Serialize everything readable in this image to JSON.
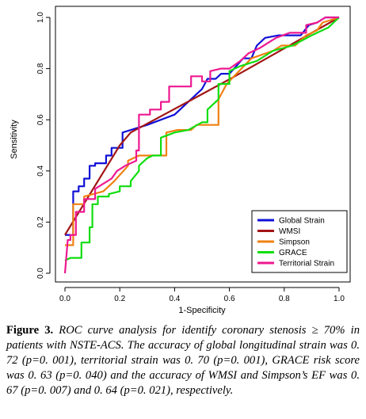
{
  "chart_data": {
    "type": "line",
    "xlabel": "1-Specificity",
    "ylabel": "Sensitivity",
    "xlim": [
      0,
      1
    ],
    "ylim": [
      0,
      1
    ],
    "xticks": [
      "0.0",
      "0.2",
      "0.4",
      "0.6",
      "0.8",
      "1.0"
    ],
    "yticks": [
      "0.0",
      "0.2",
      "0.4",
      "0.6",
      "0.8",
      "1.0"
    ],
    "legend_position": "bottom-right",
    "grid": false,
    "series": [
      {
        "name": "Global Strain",
        "color": "#1010d8",
        "points": [
          [
            0,
            0.15
          ],
          [
            0.03,
            0.15
          ],
          [
            0.03,
            0.32
          ],
          [
            0.05,
            0.32
          ],
          [
            0.05,
            0.34
          ],
          [
            0.07,
            0.34
          ],
          [
            0.07,
            0.37
          ],
          [
            0.09,
            0.37
          ],
          [
            0.09,
            0.42
          ],
          [
            0.11,
            0.42
          ],
          [
            0.11,
            0.43
          ],
          [
            0.15,
            0.43
          ],
          [
            0.15,
            0.46
          ],
          [
            0.17,
            0.46
          ],
          [
            0.17,
            0.49
          ],
          [
            0.21,
            0.49
          ],
          [
            0.21,
            0.55
          ],
          [
            0.3,
            0.58
          ],
          [
            0.4,
            0.62
          ],
          [
            0.5,
            0.72
          ],
          [
            0.52,
            0.76
          ],
          [
            0.55,
            0.76
          ],
          [
            0.57,
            0.78
          ],
          [
            0.6,
            0.78
          ],
          [
            0.65,
            0.84
          ],
          [
            0.68,
            0.84
          ],
          [
            0.7,
            0.89
          ],
          [
            0.73,
            0.92
          ],
          [
            0.78,
            0.93
          ],
          [
            0.86,
            0.93
          ],
          [
            0.89,
            0.97
          ],
          [
            0.92,
            0.98
          ],
          [
            0.95,
            1
          ],
          [
            1,
            1
          ]
        ]
      },
      {
        "name": "WMSI",
        "color": "#a21515",
        "points": [
          [
            0,
            0.15
          ],
          [
            0.2,
            0.5
          ],
          [
            0.24,
            0.55
          ],
          [
            0.5,
            0.7
          ],
          [
            0.62,
            0.77
          ],
          [
            1,
            1
          ]
        ]
      },
      {
        "name": "Simpson",
        "color": "#f08010",
        "points": [
          [
            0,
            0.11
          ],
          [
            0.03,
            0.11
          ],
          [
            0.03,
            0.27
          ],
          [
            0.07,
            0.27
          ],
          [
            0.07,
            0.3
          ],
          [
            0.14,
            0.32
          ],
          [
            0.18,
            0.36
          ],
          [
            0.23,
            0.42
          ],
          [
            0.23,
            0.44
          ],
          [
            0.27,
            0.46
          ],
          [
            0.37,
            0.46
          ],
          [
            0.37,
            0.55
          ],
          [
            0.41,
            0.56
          ],
          [
            0.46,
            0.56
          ],
          [
            0.48,
            0.58
          ],
          [
            0.56,
            0.58
          ],
          [
            0.56,
            0.68
          ],
          [
            0.59,
            0.74
          ],
          [
            0.68,
            0.84
          ],
          [
            0.76,
            0.87
          ],
          [
            0.79,
            0.89
          ],
          [
            0.84,
            0.89
          ],
          [
            0.88,
            0.93
          ],
          [
            0.92,
            0.95
          ],
          [
            0.94,
            0.98
          ],
          [
            1,
            1
          ]
        ]
      },
      {
        "name": "GRACE",
        "color": "#10dd10",
        "points": [
          [
            0,
            0.05
          ],
          [
            0.02,
            0.06
          ],
          [
            0.06,
            0.06
          ],
          [
            0.06,
            0.12
          ],
          [
            0.09,
            0.12
          ],
          [
            0.09,
            0.18
          ],
          [
            0.1,
            0.18
          ],
          [
            0.1,
            0.27
          ],
          [
            0.12,
            0.27
          ],
          [
            0.12,
            0.3
          ],
          [
            0.16,
            0.3
          ],
          [
            0.16,
            0.31
          ],
          [
            0.2,
            0.32
          ],
          [
            0.2,
            0.34
          ],
          [
            0.24,
            0.34
          ],
          [
            0.24,
            0.36
          ],
          [
            0.27,
            0.4
          ],
          [
            0.27,
            0.42
          ],
          [
            0.3,
            0.45
          ],
          [
            0.32,
            0.46
          ],
          [
            0.35,
            0.46
          ],
          [
            0.35,
            0.53
          ],
          [
            0.4,
            0.55
          ],
          [
            0.45,
            0.56
          ],
          [
            0.5,
            0.59
          ],
          [
            0.52,
            0.59
          ],
          [
            0.52,
            0.64
          ],
          [
            0.56,
            0.68
          ],
          [
            0.56,
            0.74
          ],
          [
            0.6,
            0.74
          ],
          [
            0.6,
            0.79
          ],
          [
            0.64,
            0.81
          ],
          [
            0.7,
            0.83
          ],
          [
            0.76,
            0.87
          ],
          [
            0.83,
            0.89
          ],
          [
            0.9,
            0.93
          ],
          [
            0.96,
            0.96
          ],
          [
            1,
            1
          ]
        ]
      },
      {
        "name": "Territorial Strain",
        "color": "#ee1890",
        "points": [
          [
            0,
            0
          ],
          [
            0.01,
            0.13
          ],
          [
            0.02,
            0.13
          ],
          [
            0.02,
            0.15
          ],
          [
            0.04,
            0.15
          ],
          [
            0.04,
            0.24
          ],
          [
            0.07,
            0.24
          ],
          [
            0.07,
            0.29
          ],
          [
            0.11,
            0.29
          ],
          [
            0.11,
            0.33
          ],
          [
            0.14,
            0.35
          ],
          [
            0.17,
            0.37
          ],
          [
            0.19,
            0.4
          ],
          [
            0.22,
            0.42
          ],
          [
            0.26,
            0.44
          ],
          [
            0.26,
            0.48
          ],
          [
            0.27,
            0.48
          ],
          [
            0.27,
            0.62
          ],
          [
            0.31,
            0.62
          ],
          [
            0.31,
            0.64
          ],
          [
            0.35,
            0.64
          ],
          [
            0.35,
            0.67
          ],
          [
            0.38,
            0.67
          ],
          [
            0.38,
            0.73
          ],
          [
            0.43,
            0.73
          ],
          [
            0.46,
            0.73
          ],
          [
            0.46,
            0.77
          ],
          [
            0.5,
            0.77
          ],
          [
            0.5,
            0.75
          ],
          [
            0.53,
            0.75
          ],
          [
            0.53,
            0.79
          ],
          [
            0.57,
            0.8
          ],
          [
            0.6,
            0.8
          ],
          [
            0.64,
            0.83
          ],
          [
            0.67,
            0.86
          ],
          [
            0.71,
            0.88
          ],
          [
            0.74,
            0.9
          ],
          [
            0.77,
            0.92
          ],
          [
            0.82,
            0.94
          ],
          [
            0.88,
            0.94
          ],
          [
            0.88,
            0.97
          ],
          [
            0.92,
            0.98
          ],
          [
            0.95,
            1
          ],
          [
            1,
            1
          ]
        ]
      }
    ]
  },
  "caption": {
    "label": "Figure 3.",
    "text": " ROC curve analysis for identify coronary stenosis ≥ 70% in patients with NSTE-ACS. The accuracy of global longitudinal strain was 0. 72 (p=0. 001), territorial strain was 0. 70 (p=0. 001), GRACE risk score was 0. 63 (p=0. 040) and the accuracy of WMSI and Simpson’s EF was 0. 67 (p=0. 007) and 0. 64 (p=0. 021), respectively."
  }
}
